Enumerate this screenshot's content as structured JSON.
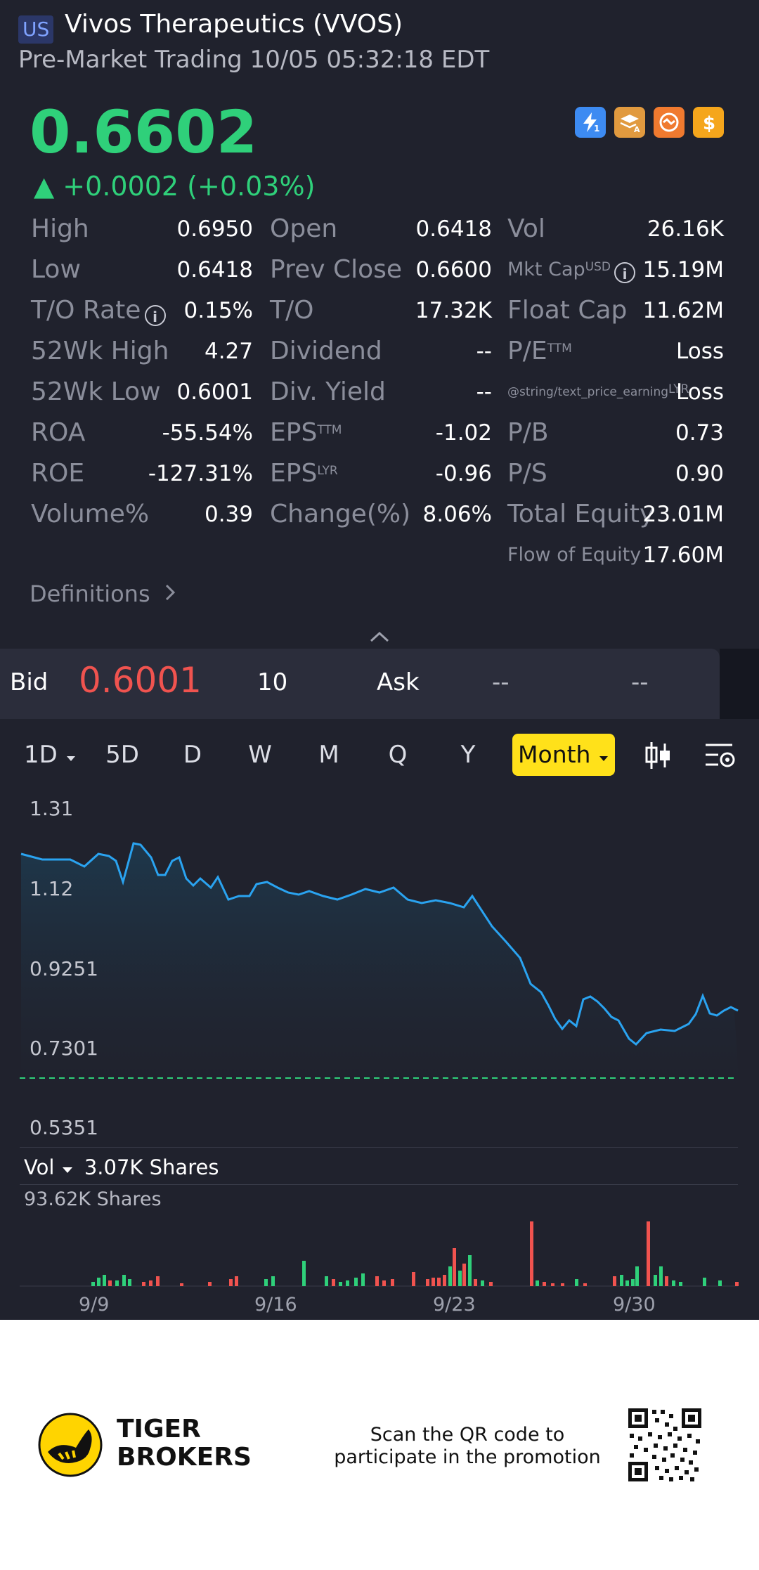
{
  "header": {
    "market_tag": "US",
    "title": "Vivos Therapeutics (VVOS)",
    "subtitle": "Pre-Market Trading 10/05 05:32:18 EDT"
  },
  "quote": {
    "price": "0.6602",
    "change": "▲ +0.0002 (+0.03%)",
    "color_up": "#2fd07a",
    "badges": [
      {
        "icon": "lightning-icon",
        "label": "1",
        "color": "#3d8bf2"
      },
      {
        "icon": "layers-icon",
        "label": "A",
        "color": "#e19a3f"
      },
      {
        "icon": "handshake-icon",
        "label": "",
        "color": "#f07a2f"
      },
      {
        "icon": "dollar-icon",
        "label": "$",
        "color": "#f5a61c"
      }
    ]
  },
  "stats": {
    "col1": [
      {
        "label": "High",
        "value": "0.6950"
      },
      {
        "label": "Low",
        "value": "0.6418"
      },
      {
        "label": "T/O Rate",
        "value": "0.15%"
      },
      {
        "label": "52Wk High",
        "value": "4.27"
      },
      {
        "label": "52Wk Low",
        "value": "0.6001"
      },
      {
        "label": "ROA",
        "value": "-55.54%"
      },
      {
        "label": "ROE",
        "value": "-127.31%"
      },
      {
        "label": "Volume%",
        "value": "0.39"
      }
    ],
    "col2": [
      {
        "label": "Open",
        "value": "0.6418"
      },
      {
        "label": "Prev Close",
        "value": "0.6600"
      },
      {
        "label": "T/O",
        "value": "17.32K"
      },
      {
        "label": "Dividend",
        "value": "--"
      },
      {
        "label": "Div. Yield",
        "value": "--"
      },
      {
        "label": "EPS",
        "sup": "TTM",
        "value": "-1.02"
      },
      {
        "label": "EPS",
        "sup": "LYR",
        "value": "-0.96"
      },
      {
        "label": "Change(%)",
        "value": "8.06%"
      }
    ],
    "col3": [
      {
        "label": "Vol",
        "value": "26.16K"
      },
      {
        "label": "Mkt Cap",
        "sup": "USD",
        "value": "15.19M"
      },
      {
        "label": "Float Cap",
        "value": "11.62M"
      },
      {
        "label": "P/E",
        "sup": "TTM",
        "value": "Loss"
      },
      {
        "label": "@string/text_price_earning",
        "sup": "LYR",
        "value": "Loss"
      },
      {
        "label": "P/B",
        "value": "0.73"
      },
      {
        "label": "P/S",
        "value": "0.90"
      },
      {
        "label": "Total Equity",
        "value": "23.01M"
      },
      {
        "label": "Flow of Equity",
        "value": "17.60M"
      }
    ],
    "definitions_label": "Definitions"
  },
  "bidask": {
    "bid_label": "Bid",
    "bid_price": "0.6001",
    "bid_size": "10",
    "ask_label": "Ask",
    "ask_price": "--",
    "ask_size": "--",
    "bid_color": "#f0534f"
  },
  "timeframes": {
    "items": [
      "1D",
      "5D",
      "D",
      "W",
      "M",
      "Q",
      "Y"
    ],
    "active": "Month"
  },
  "chart": {
    "y_labels": [
      "1.31",
      "1.12",
      "0.9251",
      "0.7301",
      "0.5351"
    ],
    "volume_label": "Vol",
    "volume_value": "3.07K Shares",
    "volume_max": "93.62K Shares",
    "x_labels": [
      "9/9",
      "9/16",
      "9/23",
      "9/30"
    ],
    "line_color": "#2aa3f0",
    "baseline_color": "#2fd07a"
  },
  "footer": {
    "brand_line1": "TIGER",
    "brand_line2": "BROKERS",
    "promo_line1": "Scan the QR code to",
    "promo_line2": "participate in the promotion"
  }
}
